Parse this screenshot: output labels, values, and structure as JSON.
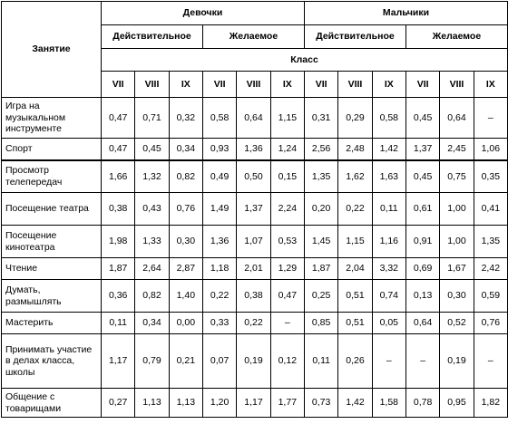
{
  "header": {
    "activity": "Занятие",
    "groups": [
      "Девочки",
      "Мальчики"
    ],
    "kinds": [
      "Действительное",
      "Желаемое",
      "Действительное",
      "Желаемое"
    ],
    "class_label": "Класс",
    "grades": [
      "VII",
      "VIII",
      "IX",
      "VII",
      "VIII",
      "IX",
      "VII",
      "VIII",
      "IX",
      "VII",
      "VIII",
      "IX"
    ]
  },
  "rows": [
    {
      "label": "Игра на музыкальном инструменте",
      "values": [
        "0,47",
        "0,71",
        "0,32",
        "0,58",
        "0,64",
        "1,15",
        "0,31",
        "0,29",
        "0,58",
        "0,45",
        "0,64",
        "–"
      ]
    },
    {
      "label": "Спорт",
      "values": [
        "0,47",
        "0,45",
        "0,34",
        "0,93",
        "1,36",
        "1,24",
        "2,56",
        "2,48",
        "1,42",
        "1,37",
        "2,45",
        "1,06"
      ]
    },
    {
      "label": "Просмотр телепередач",
      "values": [
        "1,66",
        "1,32",
        "0,82",
        "0,49",
        "0,50",
        "0,15",
        "1,35",
        "1,62",
        "1,63",
        "0,45",
        "0,75",
        "0,35"
      ]
    },
    {
      "label": "Посещение театра",
      "values": [
        "0,38",
        "0,43",
        "0,76",
        "1,49",
        "1,37",
        "2,24",
        "0,20",
        "0,22",
        "0,11",
        "0,61",
        "1,00",
        "0,41"
      ]
    },
    {
      "label": "Посещение кинотеатра",
      "values": [
        "1,98",
        "1,33",
        "0,30",
        "1,36",
        "1,07",
        "0,53",
        "1,45",
        "1,15",
        "1,16",
        "0,91",
        "1,00",
        "1,35"
      ]
    },
    {
      "label": "Чтение",
      "values": [
        "1,87",
        "2,64",
        "2,87",
        "1,18",
        "2,01",
        "1,29",
        "1,87",
        "2,04",
        "3,32",
        "0,69",
        "1,67",
        "2,42"
      ]
    },
    {
      "label": "Думать, размышлять",
      "values": [
        "0,36",
        "0,82",
        "1,40",
        "0,22",
        "0,38",
        "0,47",
        "0,25",
        "0,51",
        "0,74",
        "0,13",
        "0,30",
        "0,59"
      ]
    },
    {
      "label": "Мастерить",
      "values": [
        "0,11",
        "0,34",
        "0,00",
        "0,33",
        "0,22",
        "–",
        "0,85",
        "0,51",
        "0,05",
        "0,64",
        "0,52",
        "0,76"
      ]
    },
    {
      "label": "Принимать участие в делах класса, школы",
      "values": [
        "1,17",
        "0,79",
        "0,21",
        "0,07",
        "0,19",
        "0,12",
        "0,11",
        "0,26",
        "–",
        "–",
        "0,19",
        "–"
      ]
    },
    {
      "label": "Общение с товарищами",
      "values": [
        "0,27",
        "1,13",
        "1,13",
        "1,20",
        "1,17",
        "1,77",
        "0,73",
        "1,42",
        "1,58",
        "0,78",
        "0,95",
        "1,82"
      ]
    }
  ]
}
